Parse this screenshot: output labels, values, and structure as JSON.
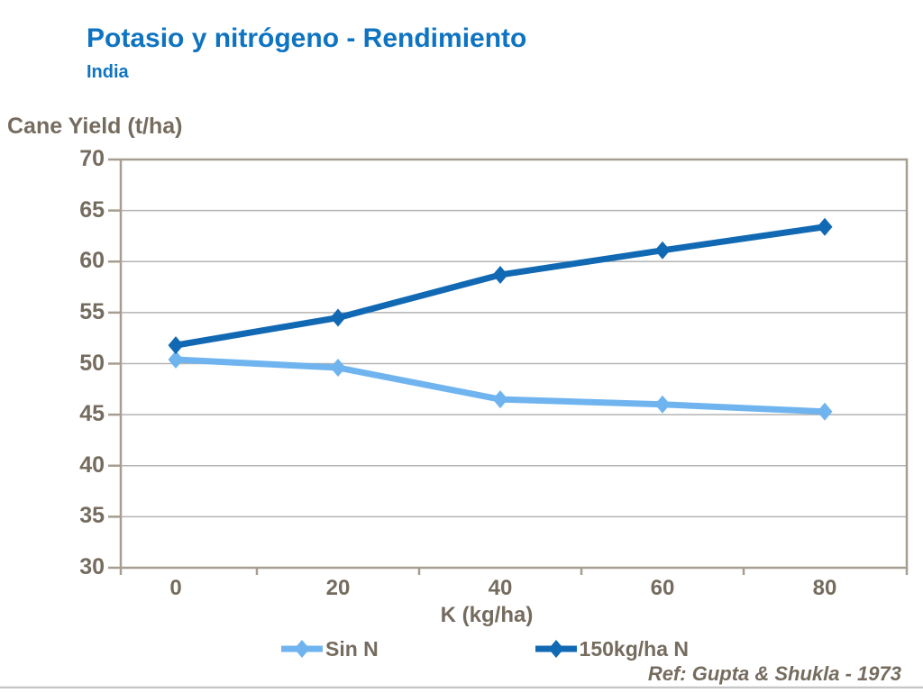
{
  "header": {
    "title": "Potasio y nitrógeno - Rendimiento",
    "subtitle": "India"
  },
  "chart_data": {
    "type": "line",
    "categories": [
      "0",
      "20",
      "40",
      "60",
      "80"
    ],
    "xlabel": "K (kg/ha)",
    "ylabel": "Cane Yield (t/ha)",
    "ylim": [
      30,
      70
    ],
    "ytick_step": 5,
    "grid": "horizontal",
    "legend_position": "bottom",
    "marker": "diamond",
    "series": [
      {
        "name": "Sin N",
        "color": "#6fb4ef",
        "values": [
          50.4,
          49.6,
          46.5,
          46.0,
          45.3
        ]
      },
      {
        "name": "150kg/ha N",
        "color": "#1169b4",
        "values": [
          51.8,
          54.5,
          58.7,
          61.1,
          63.4
        ]
      }
    ]
  },
  "footer": {
    "reference": "Ref:  Gupta & Shukla - 1973"
  },
  "colors": {
    "title_blue": "#0e74c2",
    "text": "#756c5f",
    "axis": "#a69e90",
    "gridline": "#b3b3b3",
    "divider": "#c6c6c6"
  }
}
